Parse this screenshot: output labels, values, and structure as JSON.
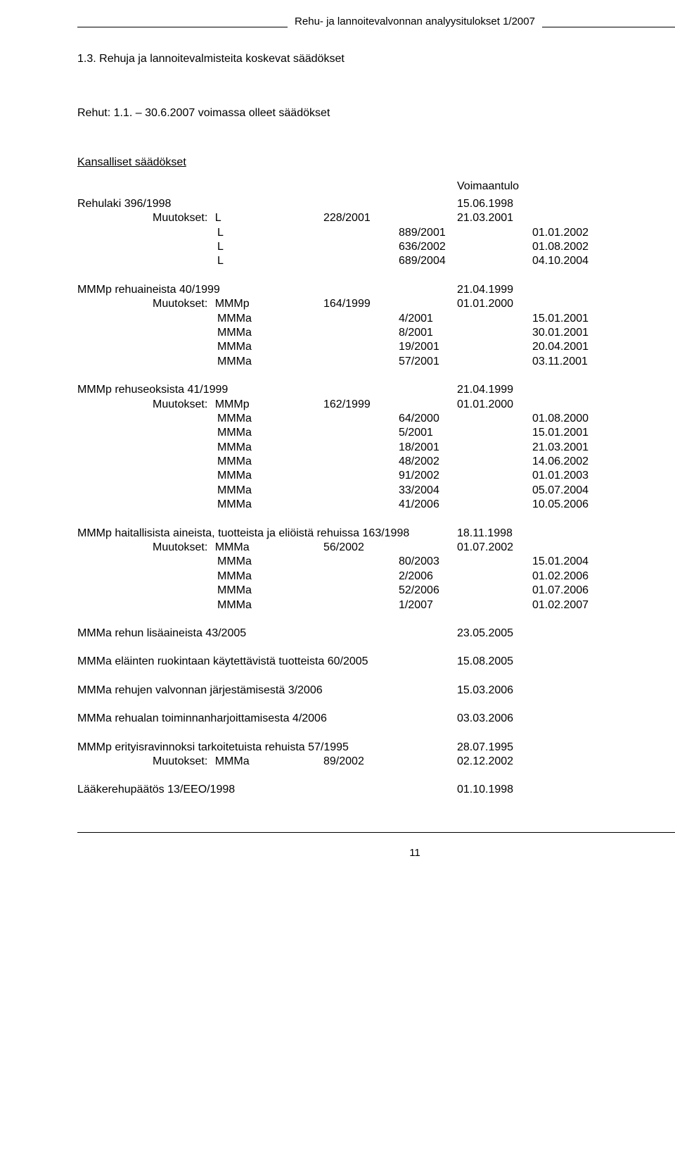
{
  "header": "Rehu- ja lannoitevalvonnan analyysitulokset 1/2007",
  "section_number": "1.3.",
  "section_title": "Rehuja ja lannoitevalmisteita koskevat säädökset",
  "rehut_label": "Rehut: 1.1. – 30.6.2007 voimassa olleet säädökset",
  "kansalliset_label": "Kansalliset säädökset",
  "voimaantulo_label": "Voimaantulo",
  "muutokset_label": "Muutokset:",
  "groups": [
    {
      "title": "Rehulaki 396/1998",
      "date": "15.06.1998",
      "items": [
        {
          "label": "L",
          "num": "228/2001",
          "date": "21.03.2001"
        },
        {
          "label": "L",
          "num": "889/2001",
          "date": "01.01.2002"
        },
        {
          "label": "L",
          "num": "636/2002",
          "date": "01.08.2002"
        },
        {
          "label": "L",
          "num": "689/2004",
          "date": "04.10.2004"
        }
      ]
    },
    {
      "title": "MMMp rehuaineista 40/1999",
      "date": "21.04.1999",
      "items": [
        {
          "label": "MMMp",
          "num": "164/1999",
          "date": "01.01.2000"
        },
        {
          "label": "MMMa",
          "num": "4/2001",
          "date": "15.01.2001"
        },
        {
          "label": "MMMa",
          "num": "8/2001",
          "date": "30.01.2001"
        },
        {
          "label": "MMMa",
          "num": "19/2001",
          "date": "20.04.2001"
        },
        {
          "label": "MMMa",
          "num": "57/2001",
          "date": "03.11.2001"
        }
      ]
    },
    {
      "title": "MMMp rehuseoksista 41/1999",
      "date": "21.04.1999",
      "items": [
        {
          "label": "MMMp",
          "num": "162/1999",
          "date": "01.01.2000"
        },
        {
          "label": "MMMa",
          "num": "64/2000",
          "date": "01.08.2000"
        },
        {
          "label": "MMMa",
          "num": "5/2001",
          "date": "15.01.2001"
        },
        {
          "label": "MMMa",
          "num": "18/2001",
          "date": "21.03.2001"
        },
        {
          "label": "MMMa",
          "num": "48/2002",
          "date": "14.06.2002"
        },
        {
          "label": "MMMa",
          "num": "91/2002",
          "date": "01.01.2003"
        },
        {
          "label": "MMMa",
          "num": "33/2004",
          "date": "05.07.2004"
        },
        {
          "label": "MMMa",
          "num": "41/2006",
          "date": "10.05.2006"
        }
      ]
    },
    {
      "title": "MMMp haitallisista aineista, tuotteista ja eliöistä rehuissa 163/1998",
      "date": "18.11.1998",
      "items": [
        {
          "label": "MMMa",
          "num": "56/2002",
          "date": "01.07.2002"
        },
        {
          "label": "MMMa",
          "num": "80/2003",
          "date": "15.01.2004"
        },
        {
          "label": "MMMa",
          "num": "2/2006",
          "date": "01.02.2006"
        },
        {
          "label": "MMMa",
          "num": "52/2006",
          "date": "01.07.2006"
        },
        {
          "label": "MMMa",
          "num": "1/2007",
          "date": "01.02.2007"
        }
      ]
    }
  ],
  "singles": [
    {
      "title": "MMMa rehun lisäaineista 43/2005",
      "date": "23.05.2005"
    },
    {
      "title": "MMMa  eläinten ruokintaan käytettävistä tuotteista 60/2005",
      "date": "15.08.2005"
    },
    {
      "title": "MMMa rehujen valvonnan järjestämisestä 3/2006",
      "date": "15.03.2006"
    },
    {
      "title": "MMMa rehualan toiminnanharjoittamisesta 4/2006",
      "date": "03.03.2006"
    }
  ],
  "erityis": {
    "title": "MMMp erityisravinnoksi tarkoitetuista rehuista 57/1995",
    "date": "28.07.1995",
    "items": [
      {
        "label": "MMMa",
        "num": "89/2002",
        "date": "02.12.2002"
      }
    ]
  },
  "laake": {
    "title": "Lääkerehupäätös 13/EEO/1998",
    "date": "01.10.1998"
  },
  "page_number": "11"
}
